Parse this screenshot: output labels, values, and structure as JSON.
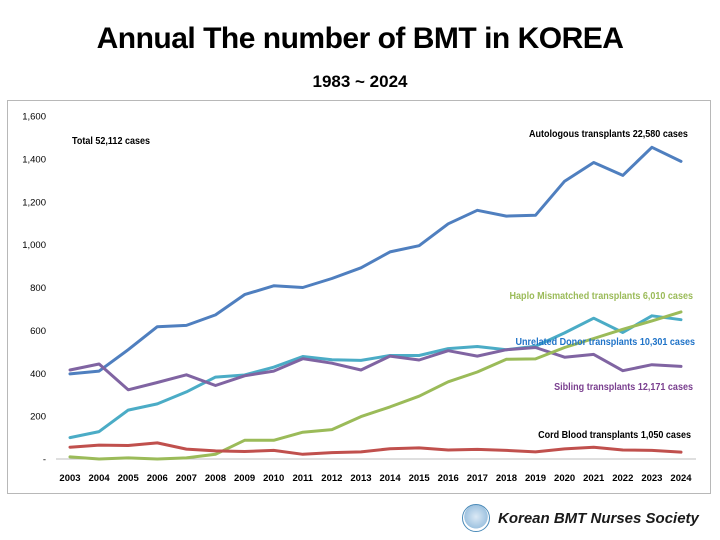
{
  "header": {
    "title": "Annual The number of BMT in KOREA",
    "subtitle": "1983 ~ 2024"
  },
  "footer": {
    "org_name": "Korean BMT Nurses Society"
  },
  "chart_data": {
    "type": "line",
    "title": "Annual The number of BMT in KOREA",
    "subtitle": "1983 ~ 2024",
    "xlabel": "",
    "ylabel": "",
    "ylim": [
      0,
      1600
    ],
    "yticks": [
      0,
      200,
      400,
      600,
      800,
      1000,
      1200,
      1400,
      1600
    ],
    "ytick_labels": [
      "-",
      "200",
      "400",
      "600",
      "800",
      "1,000",
      "1,200",
      "1,400",
      "1,600"
    ],
    "grid": false,
    "legend": "inline labels",
    "x": [
      "2003",
      "2004",
      "2005",
      "2006",
      "2007",
      "2008",
      "2009",
      "2010",
      "2011",
      "2012",
      "2013",
      "2014",
      "2015",
      "2016",
      "2017",
      "2018",
      "2019",
      "2020",
      "2021",
      "2022",
      "2023",
      "2024"
    ],
    "annotation_total": "Total 52,112 cases",
    "series": [
      {
        "name": "Autologous transplants  22,580 cases",
        "color": "#4f7fbf",
        "values": [
          397,
          410,
          510,
          617,
          623,
          672,
          767,
          808,
          800,
          842,
          892,
          966,
          995,
          1097,
          1160,
          1133,
          1137,
          1296,
          1383,
          1323,
          1454,
          1388
        ]
      },
      {
        "name": "Haplo  Mismatched transplants  6,010 cases",
        "color": "#9bbb59",
        "values": [
          10,
          0,
          5,
          0,
          5,
          22,
          87,
          87,
          125,
          137,
          198,
          243,
          293,
          360,
          406,
          465,
          467,
          520,
          562,
          605,
          644,
          686
        ]
      },
      {
        "name": "Unrelated  Donor transplants 10,301 cases",
        "color": "#4bacc6",
        "values": [
          100,
          128,
          228,
          257,
          313,
          382,
          392,
          428,
          478,
          463,
          460,
          483,
          483,
          515,
          525,
          510,
          526,
          588,
          657,
          590,
          668,
          650
        ]
      },
      {
        "name": "Sibling  transplants 12,171 cases",
        "color": "#8064a2",
        "values": [
          415,
          443,
          323,
          357,
          393,
          343,
          388,
          410,
          468,
          447,
          415,
          480,
          462,
          505,
          480,
          510,
          520,
          475,
          488,
          412,
          440,
          432
        ]
      },
      {
        "name": "Cord Blood transplants 1,050 cases",
        "color": "#c0504d",
        "values": [
          55,
          65,
          63,
          75,
          46,
          38,
          35,
          40,
          22,
          30,
          33,
          48,
          52,
          42,
          45,
          40,
          33,
          47,
          55,
          42,
          40,
          32
        ]
      }
    ]
  }
}
